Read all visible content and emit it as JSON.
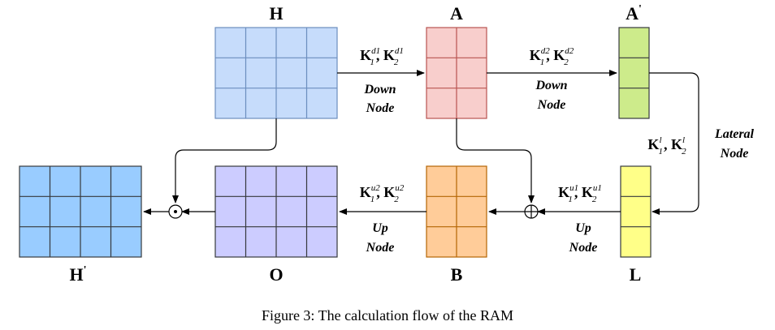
{
  "matrices": {
    "H": {
      "label": "H",
      "color": "#c6dcfb",
      "border": "#6c8ebf"
    },
    "A": {
      "label": "A",
      "color": "#f8cecc",
      "border": "#b85450"
    },
    "A_prime": {
      "label": "A",
      "prime": "'",
      "color": "#cdeb8b",
      "border": "#36393d"
    },
    "L": {
      "label": "L",
      "color": "#ffff88",
      "border": "#36393d"
    },
    "B": {
      "label": "B",
      "color": "#ffcc99",
      "border": "#b46504"
    },
    "O": {
      "label": "O",
      "color": "#ccccff",
      "border": "#36393d"
    },
    "H_prime": {
      "label": "H",
      "prime": "'",
      "color": "#99ccff",
      "border": "#36393d"
    }
  },
  "nodes": {
    "down1": {
      "line1": "Down",
      "line2": "Node",
      "k1_sup": "d1",
      "k2_sup": "d1"
    },
    "down2": {
      "line1": "Down",
      "line2": "Node",
      "k1_sup": "d2",
      "k2_sup": "d2"
    },
    "lateral": {
      "line1": "Lateral",
      "line2": "Node",
      "k1_sup": "l",
      "k2_sup": "l"
    },
    "up1": {
      "line1": "Up",
      "line2": "Node",
      "k1_sup": "u1",
      "k2_sup": "u1"
    },
    "up2": {
      "line1": "Up",
      "line2": "Node",
      "k1_sup": "u2",
      "k2_sup": "u2"
    }
  },
  "operators": {
    "add": "⊕",
    "multiply": "⊙"
  },
  "k_symbol": "K",
  "k1_sub": "1",
  "k2_sub": "2",
  "caption": "Figure 3: The calculation flow of the RAM"
}
